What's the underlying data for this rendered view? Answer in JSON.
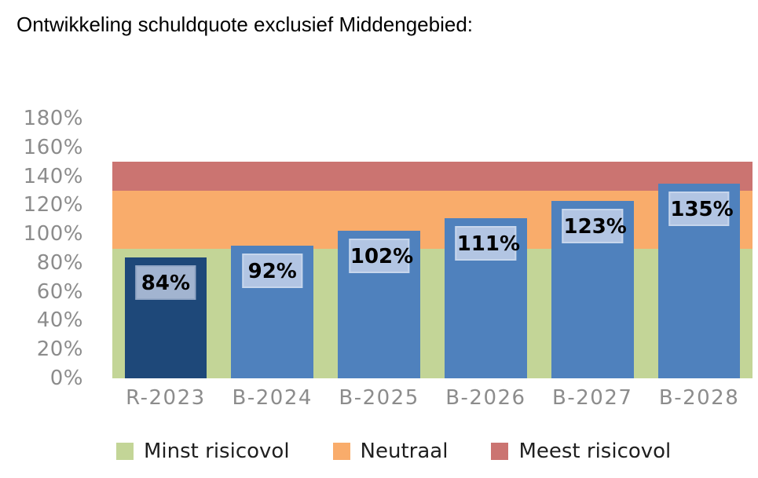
{
  "chart_data": {
    "type": "bar",
    "title": "Ontwikkeling schuldquote exclusief Middengebied:",
    "xlabel": "",
    "ylabel": "",
    "categories": [
      "R-2023",
      "B-2024",
      "B-2025",
      "B-2026",
      "B-2027",
      "B-2028"
    ],
    "values": [
      84,
      92,
      102,
      111,
      123,
      135
    ],
    "labels": [
      "84%",
      "92%",
      "102%",
      "111%",
      "123%",
      "135%"
    ],
    "bar_colors": [
      "#1E4879",
      "#4F81BD",
      "#4F81BD",
      "#4F81BD",
      "#4F81BD",
      "#4F81BD"
    ],
    "label_fills": [
      "#A2B4D0",
      "#B2C5E3",
      "#B2C5E3",
      "#B2C5E3",
      "#B2C5E3",
      "#B2C5E3"
    ],
    "label_borders": [
      "#93A7C6",
      "#C7D6EC",
      "#C7D6EC",
      "#C7D6EC",
      "#C7D6EC",
      "#C7D6EC"
    ],
    "yticks": [
      "180%",
      "160%",
      "140%",
      "120%",
      "100%",
      "80%",
      "60%",
      "40%",
      "20%",
      "0%"
    ],
    "ylim": [
      0,
      180
    ],
    "grid": false,
    "legend_position": "bottom",
    "bands": [
      {
        "name": "Minst risicovol",
        "from": 0,
        "to": 90,
        "color": "#C3D597"
      },
      {
        "name": "Neutraal",
        "from": 90,
        "to": 130,
        "color": "#F9AC6B"
      },
      {
        "name": "Meest risicovol",
        "from": 130,
        "to": 150,
        "color": "#CB7471"
      }
    ]
  }
}
